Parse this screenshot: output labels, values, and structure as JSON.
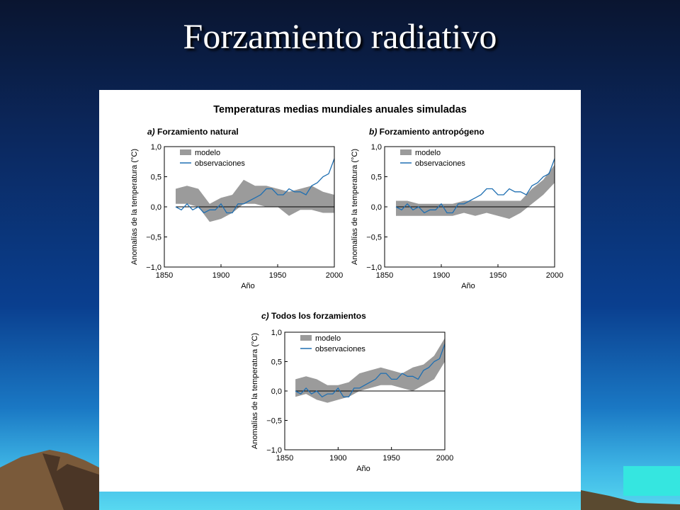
{
  "slide": {
    "title": "Forzamiento radiativo"
  },
  "figure": {
    "title": "Temperaturas medias mundiales anuales simuladas",
    "colors": {
      "model_band": "#9b9b9b",
      "observations": "#1f6fb2",
      "zero_line": "#000000"
    }
  },
  "chart_data": [
    {
      "type": "line",
      "label_prefix": "a)",
      "title": "Forzamiento natural",
      "xlabel": "Año",
      "ylabel": "Anomalías de la temperatura (°C)",
      "xlim": [
        1850,
        2000
      ],
      "ylim": [
        -1.0,
        1.0
      ],
      "xticks": [
        1850,
        1900,
        1950,
        2000
      ],
      "yticks": [
        1.0,
        0.5,
        0.0,
        -0.5,
        -1.0
      ],
      "ytick_labels": [
        "1,0",
        "0,5",
        "0,0",
        "−0,5",
        "−1,0"
      ],
      "grid": false,
      "legend": {
        "placement": "top-left",
        "entries": [
          "modelo",
          "observaciones"
        ]
      },
      "series": [
        {
          "name": "modelo",
          "kind": "band",
          "x": [
            1860,
            1870,
            1880,
            1890,
            1900,
            1910,
            1920,
            1930,
            1940,
            1950,
            1960,
            1970,
            1980,
            1990,
            2000
          ],
          "low": [
            0.05,
            0.05,
            0.0,
            -0.25,
            -0.2,
            -0.1,
            0.05,
            0.05,
            0.0,
            0.0,
            -0.15,
            -0.05,
            -0.05,
            -0.1,
            -0.1
          ],
          "high": [
            0.3,
            0.35,
            0.3,
            0.05,
            0.15,
            0.2,
            0.45,
            0.35,
            0.35,
            0.3,
            0.25,
            0.3,
            0.35,
            0.25,
            0.2
          ]
        },
        {
          "name": "observaciones",
          "kind": "line",
          "x": [
            1860,
            1865,
            1870,
            1875,
            1880,
            1885,
            1890,
            1895,
            1900,
            1905,
            1910,
            1915,
            1920,
            1925,
            1930,
            1935,
            1940,
            1945,
            1950,
            1955,
            1960,
            1965,
            1970,
            1975,
            1980,
            1985,
            1990,
            1995,
            2000
          ],
          "values": [
            0.0,
            -0.05,
            0.05,
            -0.05,
            0.0,
            -0.1,
            -0.05,
            -0.05,
            0.05,
            -0.1,
            -0.1,
            0.05,
            0.05,
            0.1,
            0.15,
            0.2,
            0.3,
            0.3,
            0.2,
            0.2,
            0.3,
            0.25,
            0.25,
            0.2,
            0.35,
            0.4,
            0.5,
            0.55,
            0.8
          ]
        }
      ]
    },
    {
      "type": "line",
      "label_prefix": "b)",
      "title": "Forzamiento antropógeno",
      "xlabel": "Año",
      "ylabel": "Anomalías de la temperatura (°C)",
      "xlim": [
        1850,
        2000
      ],
      "ylim": [
        -1.0,
        1.0
      ],
      "xticks": [
        1850,
        1900,
        1950,
        2000
      ],
      "yticks": [
        1.0,
        0.5,
        0.0,
        -0.5,
        -1.0
      ],
      "ytick_labels": [
        "1,0",
        "0,5",
        "0,0",
        "−0,5",
        "−1,0"
      ],
      "grid": false,
      "legend": {
        "placement": "top-left",
        "entries": [
          "modelo",
          "observaciones"
        ]
      },
      "series": [
        {
          "name": "modelo",
          "kind": "band",
          "x": [
            1860,
            1870,
            1880,
            1890,
            1900,
            1910,
            1920,
            1930,
            1940,
            1950,
            1960,
            1970,
            1980,
            1990,
            2000
          ],
          "low": [
            -0.15,
            -0.15,
            -0.15,
            -0.15,
            -0.15,
            -0.15,
            -0.1,
            -0.15,
            -0.1,
            -0.15,
            -0.2,
            -0.1,
            0.05,
            0.2,
            0.4
          ],
          "high": [
            0.1,
            0.1,
            0.05,
            0.05,
            0.05,
            0.05,
            0.1,
            0.1,
            0.1,
            0.1,
            0.1,
            0.1,
            0.3,
            0.45,
            0.7
          ]
        },
        {
          "name": "observaciones",
          "kind": "line",
          "x": [
            1860,
            1865,
            1870,
            1875,
            1880,
            1885,
            1890,
            1895,
            1900,
            1905,
            1910,
            1915,
            1920,
            1925,
            1930,
            1935,
            1940,
            1945,
            1950,
            1955,
            1960,
            1965,
            1970,
            1975,
            1980,
            1985,
            1990,
            1995,
            2000
          ],
          "values": [
            0.0,
            -0.05,
            0.05,
            -0.05,
            0.0,
            -0.1,
            -0.05,
            -0.05,
            0.05,
            -0.1,
            -0.1,
            0.05,
            0.05,
            0.1,
            0.15,
            0.2,
            0.3,
            0.3,
            0.2,
            0.2,
            0.3,
            0.25,
            0.25,
            0.2,
            0.35,
            0.4,
            0.5,
            0.55,
            0.8
          ]
        }
      ]
    },
    {
      "type": "line",
      "label_prefix": "c)",
      "title": "Todos los forzamientos",
      "xlabel": "Año",
      "ylabel": "Anomalías de la temperatura (°C)",
      "xlim": [
        1850,
        2000
      ],
      "ylim": [
        -1.0,
        1.0
      ],
      "xticks": [
        1850,
        1900,
        1950,
        2000
      ],
      "yticks": [
        1.0,
        0.5,
        0.0,
        -0.5,
        -1.0
      ],
      "ytick_labels": [
        "1,0",
        "0,5",
        "0,0",
        "−0,5",
        "−1,0"
      ],
      "grid": false,
      "legend": {
        "placement": "top-left",
        "entries": [
          "modelo",
          "observaciones"
        ]
      },
      "series": [
        {
          "name": "modelo",
          "kind": "band",
          "x": [
            1860,
            1870,
            1880,
            1890,
            1900,
            1910,
            1920,
            1930,
            1940,
            1950,
            1960,
            1970,
            1980,
            1990,
            2000
          ],
          "low": [
            -0.1,
            -0.05,
            -0.15,
            -0.2,
            -0.15,
            -0.1,
            0.0,
            0.05,
            0.1,
            0.1,
            0.05,
            0.0,
            0.1,
            0.2,
            0.5
          ],
          "high": [
            0.2,
            0.25,
            0.2,
            0.1,
            0.1,
            0.15,
            0.3,
            0.35,
            0.4,
            0.35,
            0.3,
            0.4,
            0.45,
            0.6,
            0.9
          ]
        },
        {
          "name": "observaciones",
          "kind": "line",
          "x": [
            1860,
            1865,
            1870,
            1875,
            1880,
            1885,
            1890,
            1895,
            1900,
            1905,
            1910,
            1915,
            1920,
            1925,
            1930,
            1935,
            1940,
            1945,
            1950,
            1955,
            1960,
            1965,
            1970,
            1975,
            1980,
            1985,
            1990,
            1995,
            2000
          ],
          "values": [
            0.0,
            -0.05,
            0.05,
            -0.05,
            0.0,
            -0.1,
            -0.05,
            -0.05,
            0.05,
            -0.1,
            -0.1,
            0.05,
            0.05,
            0.1,
            0.15,
            0.2,
            0.3,
            0.3,
            0.2,
            0.2,
            0.3,
            0.25,
            0.25,
            0.2,
            0.35,
            0.4,
            0.5,
            0.55,
            0.8
          ]
        }
      ]
    }
  ]
}
